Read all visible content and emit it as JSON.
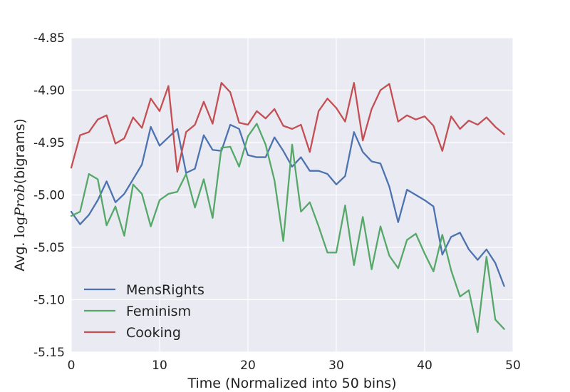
{
  "chart_data": {
    "type": "line",
    "xlabel": "Time (Normalized into 50 bins)",
    "ylabel_parts": {
      "prefix": "Avg. ",
      "log": "log",
      "math": "Prob",
      "suffix": "(bigrams)"
    },
    "xlim": [
      0,
      50
    ],
    "ylim": [
      -5.15,
      -4.85
    ],
    "x_ticks": [
      0,
      10,
      20,
      30,
      40,
      50
    ],
    "x_tick_labels": [
      "0",
      "10",
      "20",
      "30",
      "40",
      "50"
    ],
    "y_ticks": [
      -4.85,
      -4.9,
      -4.95,
      -5.0,
      -5.05,
      -5.1,
      -5.15
    ],
    "y_tick_labels": [
      "-4.85",
      "-4.90",
      "-4.95",
      "-5.00",
      "-5.05",
      "-5.10",
      "-5.15"
    ],
    "grid": true,
    "legend_position": "lower-left",
    "background": "#eaeaf2",
    "series": [
      {
        "name": "MensRights",
        "color": "#4c72b0",
        "values": [
          -5.016,
          -5.028,
          -5.019,
          -5.005,
          -4.987,
          -5.007,
          -4.999,
          -4.985,
          -4.971,
          -4.935,
          -4.953,
          -4.945,
          -4.937,
          -4.979,
          -4.975,
          -4.943,
          -4.957,
          -4.958,
          -4.933,
          -4.937,
          -4.962,
          -4.964,
          -4.964,
          -4.945,
          -4.958,
          -4.973,
          -4.964,
          -4.977,
          -4.977,
          -4.98,
          -4.99,
          -4.982,
          -4.94,
          -4.959,
          -4.968,
          -4.97,
          -4.992,
          -5.026,
          -4.995,
          -5.0,
          -5.005,
          -5.011,
          -5.057,
          -5.04,
          -5.036,
          -5.052,
          -5.062,
          -5.052,
          -5.065,
          -5.087
        ]
      },
      {
        "name": "Feminism",
        "color": "#55a868",
        "values": [
          -5.02,
          -5.016,
          -4.98,
          -4.985,
          -5.029,
          -5.011,
          -5.039,
          -4.99,
          -4.999,
          -5.03,
          -5.005,
          -4.999,
          -4.997,
          -4.98,
          -5.012,
          -4.985,
          -5.022,
          -4.955,
          -4.954,
          -4.973,
          -4.944,
          -4.932,
          -4.952,
          -4.986,
          -5.044,
          -4.952,
          -5.016,
          -5.007,
          -5.03,
          -5.055,
          -5.055,
          -5.01,
          -5.067,
          -5.021,
          -5.071,
          -5.03,
          -5.058,
          -5.07,
          -5.043,
          -5.037,
          -5.056,
          -5.073,
          -5.038,
          -5.072,
          -5.097,
          -5.091,
          -5.131,
          -5.059,
          -5.119,
          -5.128
        ]
      },
      {
        "name": "Cooking",
        "color": "#c44e52",
        "values": [
          -4.974,
          -4.943,
          -4.94,
          -4.928,
          -4.924,
          -4.951,
          -4.946,
          -4.926,
          -4.936,
          -4.908,
          -4.92,
          -4.896,
          -4.978,
          -4.94,
          -4.933,
          -4.911,
          -4.932,
          -4.893,
          -4.902,
          -4.931,
          -4.933,
          -4.92,
          -4.927,
          -4.918,
          -4.934,
          -4.937,
          -4.933,
          -4.959,
          -4.92,
          -4.908,
          -4.917,
          -4.93,
          -4.893,
          -4.948,
          -4.918,
          -4.9,
          -4.894,
          -4.93,
          -4.924,
          -4.928,
          -4.925,
          -4.934,
          -4.958,
          -4.925,
          -4.937,
          -4.929,
          -4.933,
          -4.926,
          -4.935,
          -4.942
        ]
      }
    ]
  }
}
